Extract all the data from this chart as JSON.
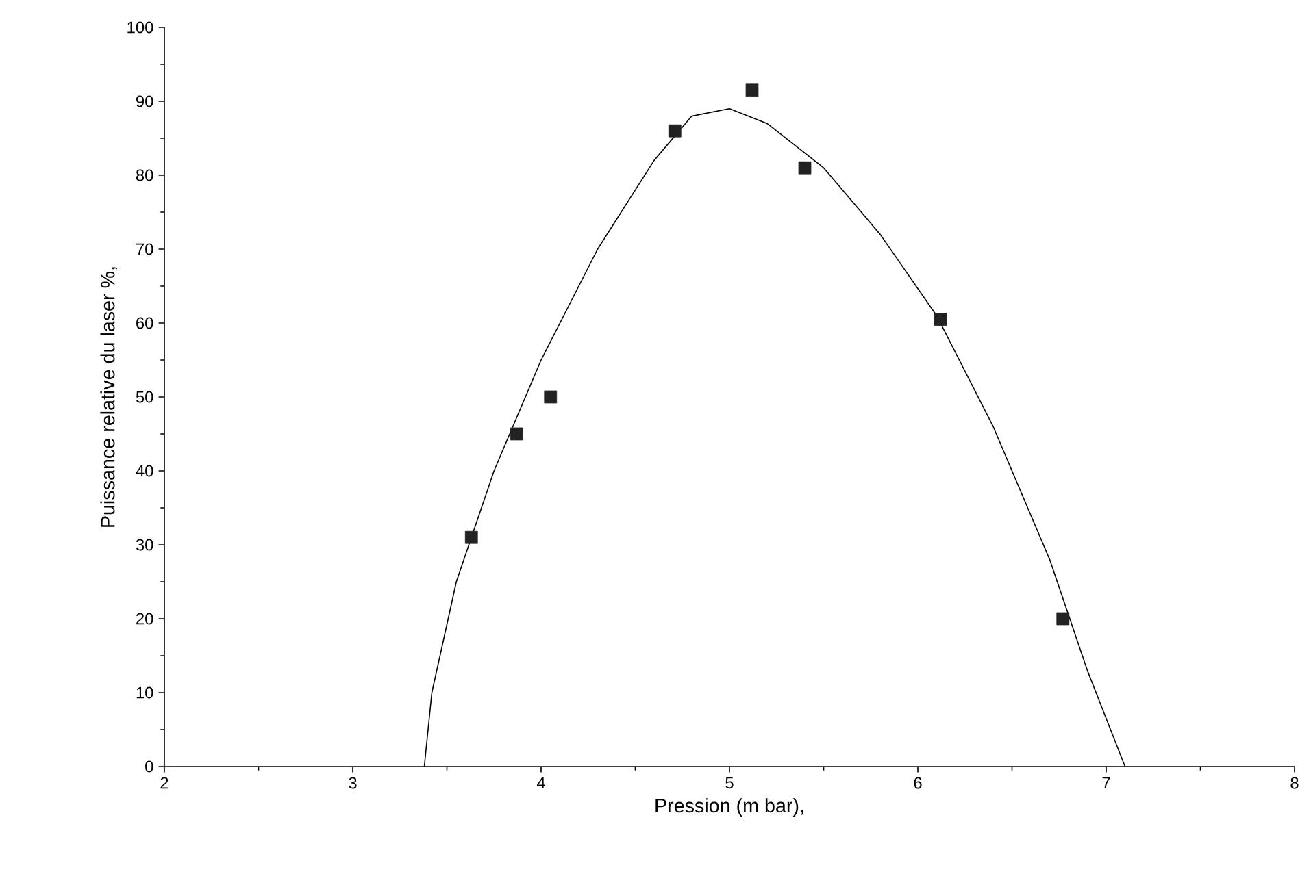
{
  "chart_data": {
    "type": "scatter",
    "xlabel": "Pression (m bar),",
    "ylabel": "Puissance relative du laser %,",
    "xlim": [
      2,
      8
    ],
    "ylim": [
      0,
      100
    ],
    "xticks": [
      2,
      3,
      4,
      5,
      6,
      7,
      8
    ],
    "yticks": [
      0,
      10,
      20,
      30,
      40,
      50,
      60,
      70,
      80,
      90,
      100
    ],
    "series": [
      {
        "type": "line",
        "color": "#000000",
        "marker": "none",
        "line_style": "solid",
        "x": [
          3.38,
          3.42,
          3.55,
          3.75,
          4.0,
          4.3,
          4.6,
          4.8,
          5.0,
          5.2,
          5.5,
          5.8,
          6.1,
          6.4,
          6.7,
          6.9,
          7.1
        ],
        "values": [
          0,
          10,
          25,
          40,
          55,
          70,
          82,
          88,
          89,
          87,
          81,
          72,
          61,
          46,
          28,
          13,
          0
        ]
      },
      {
        "color": "#222222",
        "marker": "square",
        "x": [
          3.63,
          3.87,
          4.05,
          4.71,
          5.12,
          5.4,
          6.12,
          6.77
        ],
        "values": [
          31,
          45,
          50,
          86,
          91.5,
          81,
          60.5,
          20
        ]
      }
    ]
  }
}
